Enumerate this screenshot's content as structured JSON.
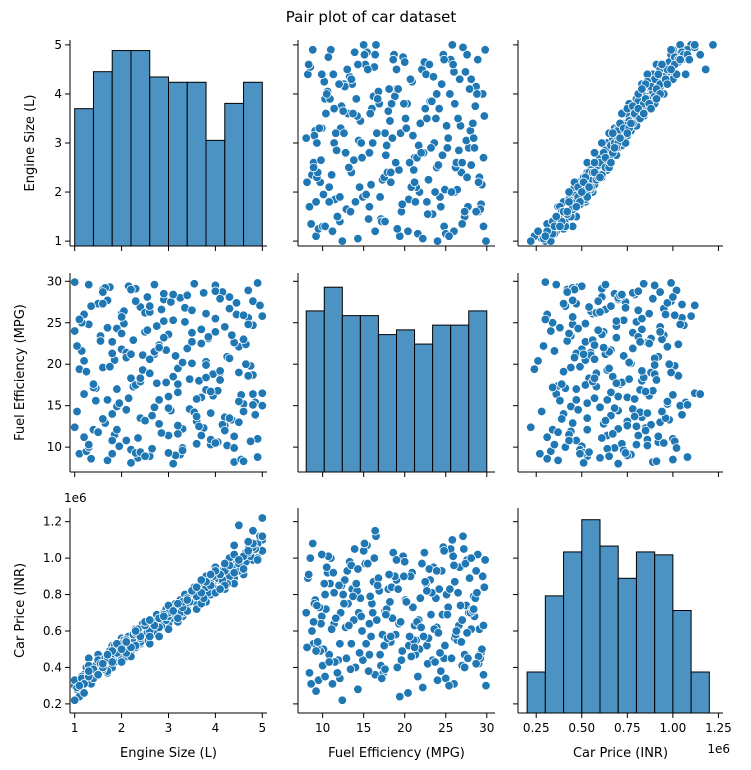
{
  "chart_data": {
    "type": "pairplot",
    "title": "Pair plot of car dataset",
    "variables": [
      "Engine Size (L)",
      "Fuel Efficiency (MPG)",
      "Car Price (INR)"
    ],
    "offset_labels": {
      "price": "1e6"
    },
    "colors": {
      "fill": "#1f77b4",
      "hist_fill": "#4c92c3",
      "edge": "#ffffff",
      "hist_edge": "#000000"
    },
    "axes": {
      "engine": {
        "lim": [
          0.9,
          5.1
        ],
        "ticks": [
          1,
          2,
          3,
          4,
          5
        ],
        "tick_labels": [
          "1",
          "2",
          "3",
          "4",
          "5"
        ]
      },
      "mpg": {
        "lim": [
          7.0,
          31.0
        ],
        "ticks": [
          10,
          15,
          20,
          25,
          30
        ],
        "tick_labels": [
          "10",
          "15",
          "20",
          "25",
          "30"
        ]
      },
      "price": {
        "lim": [
          0.15,
          1.275
        ],
        "ticks": [
          0.2,
          0.4,
          0.6,
          0.8,
          1.0,
          1.2
        ],
        "tick_labels": [
          "0.2",
          "0.4",
          "0.6",
          "0.8",
          "1.0",
          "1.2"
        ],
        "x_ticks": [
          0.25,
          0.5,
          0.75,
          1.0,
          1.25
        ],
        "x_tick_labels": [
          "0.25",
          "0.50",
          "0.75",
          "1.00",
          "1.25"
        ]
      }
    },
    "histograms": {
      "engine": {
        "bins": [
          1.0,
          1.4,
          1.8,
          2.2,
          2.6,
          3.0,
          3.4,
          3.8,
          4.2,
          4.6,
          5.0
        ],
        "counts": [
          26,
          33,
          37,
          37,
          32,
          31,
          31,
          20,
          27,
          31
        ],
        "ylim": [
          0,
          39
        ]
      },
      "mpg": {
        "bins": [
          8.0,
          10.2,
          12.4,
          14.6,
          16.8,
          19.0,
          21.2,
          23.4,
          25.6,
          27.8,
          30.0
        ],
        "counts": [
          34,
          39,
          33,
          33,
          29,
          30,
          27,
          31,
          31,
          34
        ],
        "ylim": [
          0,
          42
        ]
      },
      "price": {
        "bins": [
          0.2,
          0.3,
          0.4,
          0.5,
          0.6,
          0.7,
          0.8,
          0.9,
          1.0,
          1.1,
          1.2
        ],
        "counts": [
          14,
          40,
          55,
          66,
          57,
          46,
          55,
          54,
          35,
          14
        ],
        "ylim": [
          0,
          70
        ]
      }
    },
    "points": {
      "engine": [
        1.0,
        1.1,
        1.2,
        1.3,
        1.4,
        1.5,
        1.6,
        1.7,
        1.8,
        1.9,
        2.0,
        2.1,
        2.2,
        2.3,
        2.4,
        2.5,
        2.6,
        2.7,
        2.8,
        2.9,
        3.0,
        3.1,
        3.2,
        3.3,
        3.4,
        3.5,
        3.6,
        3.7,
        3.8,
        3.9,
        4.0,
        4.1,
        4.2,
        4.3,
        4.4,
        4.5,
        4.6,
        4.7,
        4.8,
        4.9,
        5.0,
        1.05,
        1.15,
        1.25,
        1.35,
        1.45,
        1.55,
        1.65,
        1.75,
        1.85,
        1.95,
        2.05,
        2.15,
        2.25,
        2.35,
        2.45,
        2.55,
        2.65,
        2.75,
        2.85,
        2.95,
        3.05,
        3.15,
        3.25,
        3.35,
        3.45,
        3.55,
        3.65,
        3.75,
        3.85,
        3.95,
        4.05,
        4.15,
        4.25,
        4.35,
        4.45,
        4.55,
        4.65,
        4.75,
        4.85,
        4.95,
        1.0,
        1.2,
        1.4,
        1.6,
        1.8,
        2.0,
        2.2,
        2.4,
        2.6,
        2.8,
        3.0,
        3.2,
        3.4,
        3.6,
        3.8,
        4.0,
        4.2,
        4.4,
        4.6,
        4.8,
        5.0,
        1.1,
        1.3,
        1.5,
        1.7,
        1.9,
        2.1,
        2.3,
        2.5,
        2.7,
        2.9,
        3.1,
        3.3,
        3.5,
        3.7,
        3.9,
        4.1,
        4.3,
        4.5,
        4.7,
        4.9,
        1.05,
        1.25,
        1.45,
        1.65,
        1.85,
        2.05,
        2.25,
        2.45,
        2.65,
        2.85,
        3.05,
        3.25,
        3.45,
        3.65,
        3.85,
        4.05,
        4.25,
        4.45,
        4.65,
        4.85,
        1.15,
        1.35,
        1.55,
        1.75,
        1.95,
        2.15,
        2.35,
        2.55,
        2.75,
        2.95,
        3.15,
        3.35,
        3.55,
        3.75,
        3.95,
        4.15,
        4.35,
        4.55,
        4.75,
        4.95,
        1.2,
        1.6,
        2.0,
        2.4,
        2.8,
        3.2,
        3.6,
        4.0,
        4.4,
        4.8,
        1.4,
        1.8,
        2.2,
        2.6,
        3.0,
        3.4,
        3.8,
        4.2,
        4.6,
        5.0,
        1.3,
        1.7,
        2.1,
        2.5,
        2.9,
        3.3,
        3.7,
        4.1,
        4.5,
        4.9,
        1.5,
        1.9,
        2.3,
        2.7,
        3.1,
        3.5,
        3.9,
        4.3,
        4.7,
        1.0,
        2.0,
        3.0,
        4.0,
        1.6,
        2.6,
        3.6,
        4.6,
        1.8,
        2.8,
        3.8,
        4.8,
        2.2,
        3.2,
        4.2,
        2.4,
        3.4,
        4.4,
        1.2,
        2.1,
        3.1,
        4.1,
        1.9,
        2.9,
        3.9,
        1.3,
        2.3,
        3.3,
        4.3,
        1.1,
        2.5,
        3.5,
        4.5,
        1.7,
        2.7,
        3.7,
        4.7,
        1.4,
        2.2,
        3.0,
        3.8,
        4.6,
        1.6,
        2.4,
        3.2,
        4.0,
        4.8,
        1.8,
        2.6,
        3.4,
        4.2,
        5.0,
        2.0,
        2.8,
        3.6,
        4.4,
        1.5,
        2.3,
        3.1,
        3.9,
        4.7,
        1.3,
        2.1,
        2.9,
        3.7,
        4.5
      ],
      "mpg": [
        29.9,
        9.2,
        16.4,
        24.8,
        12.1,
        27.3,
        19.6,
        8.4,
        22.7,
        14.9,
        26.1,
        10.8,
        18.3,
        29.1,
        13.5,
        23.9,
        8.9,
        21.2,
        15.7,
        27.8,
        11.4,
        25.3,
        17.6,
        9.9,
        28.4,
        20.1,
        13.1,
        24.2,
        16.9,
        10.3,
        29.5,
        19.0,
        12.6,
        26.7,
        8.2,
        22.1,
        15.2,
        28.9,
        18.7,
        11.0,
        25.8,
        14.3,
        21.6,
        9.5,
        27.0,
        17.1,
        23.4,
        12.9,
        29.3,
        20.5,
        10.1,
        26.4,
        15.9,
        22.9,
        8.7,
        19.3,
        28.1,
        13.8,
        24.6,
        11.7,
        17.8,
        27.5,
        21.0,
        9.1,
        25.1,
        14.6,
        29.7,
        18.0,
        12.3,
        23.1,
        16.2,
        10.6,
        28.7,
        20.9,
        13.3,
        26.0,
        8.5,
        22.4,
        19.8,
        15.4,
        27.2,
        24.0,
        11.2,
        17.4,
        29.0,
        14.0,
        21.8,
        9.7,
        26.9,
        18.9,
        12.8,
        23.6,
        16.6,
        28.2,
        10.4,
        20.3,
        25.5,
        13.6,
        22.6,
        8.3,
        27.6,
        15.0,
        19.4,
        29.6,
        11.9,
        24.4,
        17.0,
        21.4,
        9.3,
        26.2,
        14.8,
        28.5,
        18.5,
        12.2,
        23.8,
        16.0,
        10.9,
        27.9,
        20.7,
        13.0,
        25.6,
        8.8,
        22.2,
        19.1,
        15.6,
        29.2,
        11.5,
        24.9,
        17.3,
        21.1,
        9.8,
        26.6,
        14.4,
        28.0,
        18.2,
        12.5,
        23.3,
        16.8,
        10.2,
        27.4,
        20.0,
        13.9,
        25.0,
        8.6,
        22.8,
        19.7,
        15.3,
        29.4,
        11.1,
        24.1,
        17.7,
        21.7,
        9.0,
        26.8,
        14.2,
        28.6,
        18.8,
        12.7,
        23.5,
        16.3,
        10.7,
        27.1,
        20.4,
        13.4,
        25.7,
        9.4,
        22.3,
        19.5,
        15.8,
        28.8,
        11.3,
        24.7,
        17.2,
        21.3,
        8.1,
        26.3,
        14.7,
        28.3,
        18.4,
        12.0,
        23.0,
        16.5,
        10.0,
        27.7,
        20.8,
        13.2,
        25.2,
        9.6,
        22.5,
        19.2,
        15.5,
        29.8,
        11.8,
        24.3,
        17.5,
        21.5,
        8.0,
        26.5,
        14.1,
        28.1,
        18.6,
        12.4,
        23.7,
        16.1,
        10.5,
        27.3,
        20.6,
        13.7,
        25.9,
        9.2,
        22.0,
        19.9,
        15.1,
        29.0,
        11.6,
        24.5,
        17.9,
        21.9,
        9.9,
        26.0,
        14.5,
        28.4,
        18.1,
        12.1,
        23.2,
        16.7,
        10.3,
        27.6,
        20.2,
        13.5,
        25.4,
        8.9,
        22.7,
        19.0,
        15.7,
        29.6,
        11.4,
        24.8,
        17.6,
        21.2,
        9.3,
        26.1,
        14.3,
        28.7,
        18.3,
        12.6,
        23.9,
        16.4,
        10.8,
        27.0
      ],
      "price": [
        0.3,
        0.27,
        0.36,
        0.45,
        0.34,
        0.47,
        0.44,
        0.37,
        0.52,
        0.44,
        0.56,
        0.47,
        0.54,
        0.61,
        0.53,
        0.62,
        0.53,
        0.63,
        0.64,
        0.7,
        0.64,
        0.73,
        0.71,
        0.68,
        0.79,
        0.77,
        0.75,
        0.83,
        0.82,
        0.8,
        0.9,
        0.88,
        0.88,
        0.95,
        0.89,
        0.97,
        0.97,
        1.02,
        1.03,
        1.0,
        1.1,
        0.28,
        0.35,
        0.33,
        0.41,
        0.41,
        0.44,
        0.45,
        0.48,
        0.52,
        0.5,
        0.55,
        0.57,
        0.56,
        0.6,
        0.64,
        0.61,
        0.66,
        0.69,
        0.67,
        0.72,
        0.74,
        0.73,
        0.77,
        0.8,
        0.78,
        0.84,
        0.83,
        0.85,
        0.88,
        0.87,
        0.92,
        0.93,
        0.92,
        0.98,
        0.96,
        1.0,
        1.03,
        1.01,
        1.07,
        1.05,
        0.33,
        0.31,
        0.37,
        0.42,
        0.4,
        0.5,
        0.49,
        0.54,
        0.58,
        0.62,
        0.61,
        0.66,
        0.72,
        0.72,
        0.76,
        0.83,
        0.83,
        0.86,
        0.91,
        0.99,
        1.04,
        0.24,
        0.36,
        0.44,
        0.38,
        0.47,
        0.55,
        0.51,
        0.58,
        0.6,
        0.68,
        0.67,
        0.7,
        0.78,
        0.75,
        0.86,
        0.89,
        0.9,
        0.93,
        1.05,
        1.08,
        0.29,
        0.4,
        0.38,
        0.45,
        0.43,
        0.52,
        0.58,
        0.55,
        0.64,
        0.63,
        0.7,
        0.7,
        0.76,
        0.8,
        0.81,
        0.89,
        0.86,
        0.97,
        0.98,
        1.05,
        0.34,
        0.31,
        0.42,
        0.49,
        0.53,
        0.5,
        0.61,
        0.59,
        0.69,
        0.66,
        0.75,
        0.74,
        0.82,
        0.78,
        0.9,
        0.88,
        0.95,
        1.0,
        1.01,
        1.12,
        0.26,
        0.39,
        0.45,
        0.54,
        0.57,
        0.65,
        0.79,
        0.81,
        0.92,
        1.06,
        0.34,
        0.47,
        0.51,
        0.6,
        0.68,
        0.71,
        0.84,
        0.85,
        0.94,
        1.12,
        0.41,
        0.45,
        0.46,
        0.63,
        0.69,
        0.73,
        0.87,
        0.83,
        0.97,
        0.99,
        0.37,
        0.48,
        0.52,
        0.65,
        0.7,
        0.81,
        0.86,
        1.0,
        1.03,
        0.22,
        0.43,
        0.7,
        0.95,
        0.4,
        0.57,
        0.79,
        1.01,
        0.49,
        0.62,
        0.9,
        1.08,
        0.46,
        0.67,
        0.93,
        0.56,
        0.78,
        1.02,
        0.31,
        0.48,
        0.72,
        0.91,
        0.53,
        0.69,
        0.85,
        0.35,
        0.59,
        0.76,
        0.96,
        0.3,
        0.65,
        0.82,
        0.99,
        0.47,
        0.63,
        0.81,
        1.04,
        0.39,
        0.51,
        0.74,
        0.87,
        0.94,
        0.42,
        0.57,
        0.75,
        0.93,
        1.15,
        0.43,
        0.66,
        0.77,
        0.97,
        1.22,
        0.5,
        0.67,
        0.84,
        1.07,
        0.36,
        0.6,
        0.71,
        0.91,
        1.09,
        0.38,
        0.54,
        0.68,
        0.88,
        1.18
      ]
    }
  }
}
